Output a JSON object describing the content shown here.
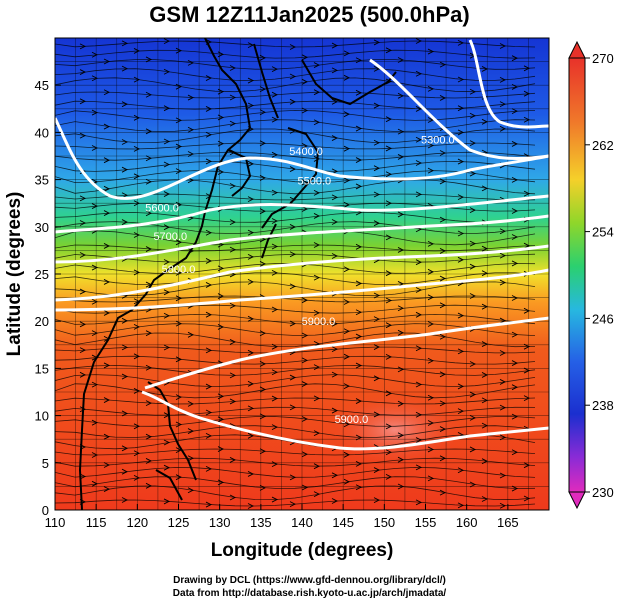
{
  "title": "GSM 12Z11Jan2025 (500.0hPa)",
  "xlabel": "Longitude (degrees)",
  "ylabel": "Latitude  (degrees)",
  "x_ticks": [
    110,
    115,
    120,
    125,
    130,
    135,
    140,
    145,
    150,
    155,
    160,
    165
  ],
  "y_ticks": [
    0,
    5,
    10,
    15,
    20,
    25,
    30,
    35,
    40,
    45
  ],
  "xlim": [
    110,
    170
  ],
  "ylim": [
    0,
    50
  ],
  "colorbar": {
    "ticks": [
      230,
      238,
      246,
      254,
      262,
      270
    ],
    "range": [
      230,
      270
    ]
  },
  "contours": [
    {
      "label": "5300.0",
      "lon": 156.5,
      "lat": 38.8
    },
    {
      "label": "5400.0",
      "lon": 140.5,
      "lat": 37.6
    },
    {
      "label": "5500.0",
      "lon": 141.5,
      "lat": 34.5
    },
    {
      "label": "5600.0",
      "lon": 123.0,
      "lat": 31.6
    },
    {
      "label": "5700.0",
      "lon": 124.0,
      "lat": 28.6
    },
    {
      "label": "5800.0",
      "lon": 125.0,
      "lat": 25.1
    },
    {
      "label": "5900.0",
      "lon": 142.0,
      "lat": 19.6
    },
    {
      "label": "5900.0",
      "lon": 146.0,
      "lat": 9.2
    }
  ],
  "credits": [
    "Drawing by DCL (https://www.gfd-dennou.org/library/dcl/)",
    "Data from http://database.rish.kyoto-u.ac.jp/arch/jmadata/"
  ]
}
